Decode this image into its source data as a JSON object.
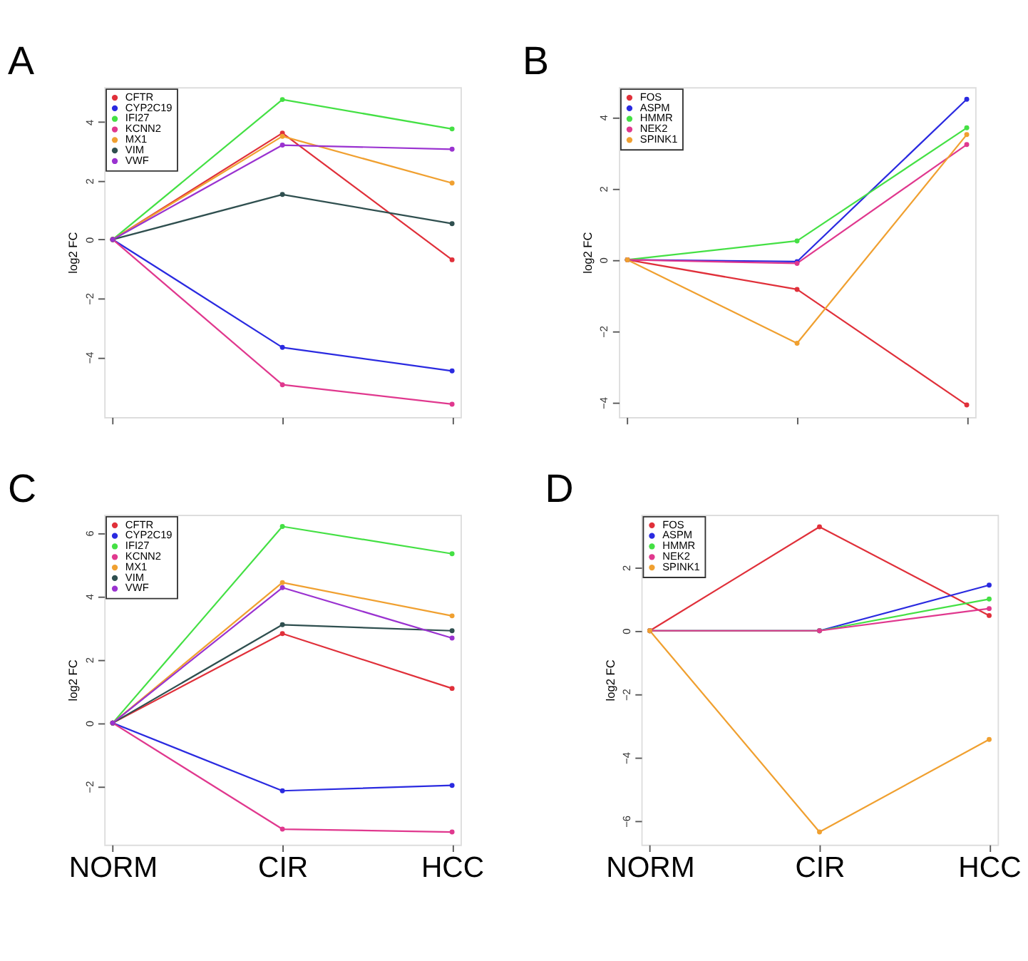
{
  "chart_data": [
    {
      "type": "line",
      "title": "A",
      "ylabel": "log2 FC",
      "categories": [
        null,
        null,
        null
      ],
      "ylim": [
        -6.04,
        5.18
      ],
      "yticks": [
        -4,
        -2,
        0,
        2,
        4
      ],
      "legend": "top left",
      "grid": false,
      "marker": "circle",
      "line_style": "solid",
      "series": [
        {
          "name": "CFTR",
          "color": "#e0303a",
          "values": [
            0,
            3.62,
            -0.69
          ]
        },
        {
          "name": "CYP2C19",
          "color": "#2a2ae0",
          "values": [
            0,
            -3.67,
            -4.47
          ]
        },
        {
          "name": "IFI27",
          "color": "#44e044",
          "values": [
            0,
            4.76,
            3.76
          ]
        },
        {
          "name": "KCNN2",
          "color": "#e0388e",
          "values": [
            0,
            -4.94,
            -5.6
          ]
        },
        {
          "name": "MX1",
          "color": "#f0a030",
          "values": [
            0,
            3.51,
            1.92
          ]
        },
        {
          "name": "VIM",
          "color": "#2f4f4f",
          "values": [
            0,
            1.53,
            0.54
          ]
        },
        {
          "name": "VWF",
          "color": "#9a32d0",
          "values": [
            0,
            3.21,
            3.07
          ]
        }
      ]
    },
    {
      "type": "line",
      "title": "B",
      "ylabel": "log2 FC",
      "categories": [
        null,
        null,
        null
      ],
      "ylim": [
        -4.41,
        4.84
      ],
      "yticks": [
        -4,
        -2,
        0,
        2,
        4
      ],
      "legend": "top left",
      "grid": false,
      "marker": "circle",
      "line_style": "solid",
      "series": [
        {
          "name": "FOS",
          "color": "#e0303a",
          "values": [
            0,
            -0.83,
            -4.07
          ]
        },
        {
          "name": "ASPM",
          "color": "#2a2ae0",
          "values": [
            0,
            -0.05,
            4.5
          ]
        },
        {
          "name": "HMMR",
          "color": "#44e044",
          "values": [
            0,
            0.53,
            3.7
          ]
        },
        {
          "name": "NEK2",
          "color": "#e0388e",
          "values": [
            0,
            -0.1,
            3.23
          ]
        },
        {
          "name": "SPINK1",
          "color": "#f0a030",
          "values": [
            0,
            -2.34,
            3.51
          ]
        }
      ]
    },
    {
      "type": "line",
      "title": "C",
      "ylabel": "log2 FC",
      "categories": [
        "NORM",
        "CIR",
        "HCC"
      ],
      "ylim": [
        -3.84,
        6.57
      ],
      "yticks": [
        -2,
        0,
        2,
        4,
        6
      ],
      "legend": "top left",
      "grid": false,
      "marker": "circle",
      "line_style": "solid",
      "series": [
        {
          "name": "CFTR",
          "color": "#e0303a",
          "values": [
            0,
            2.82,
            1.09
          ]
        },
        {
          "name": "CYP2C19",
          "color": "#2a2ae0",
          "values": [
            0,
            -2.14,
            -1.97
          ]
        },
        {
          "name": "IFI27",
          "color": "#44e044",
          "values": [
            0,
            6.2,
            5.34
          ]
        },
        {
          "name": "KCNN2",
          "color": "#e0388e",
          "values": [
            0,
            -3.35,
            -3.44
          ]
        },
        {
          "name": "MX1",
          "color": "#f0a030",
          "values": [
            0,
            4.43,
            3.38
          ]
        },
        {
          "name": "VIM",
          "color": "#2f4f4f",
          "values": [
            0,
            3.1,
            2.91
          ]
        },
        {
          "name": "VWF",
          "color": "#9a32d0",
          "values": [
            0,
            4.27,
            2.68
          ]
        }
      ]
    },
    {
      "type": "line",
      "title": "D",
      "ylabel": "log2 FC",
      "categories": [
        "NORM",
        "CIR",
        "HCC"
      ],
      "ylim": [
        -6.75,
        3.66
      ],
      "yticks": [
        -6,
        -4,
        -2,
        0,
        2
      ],
      "legend": "top left",
      "grid": false,
      "marker": "circle",
      "line_style": "solid",
      "series": [
        {
          "name": "FOS",
          "color": "#e0303a",
          "values": [
            0,
            3.28,
            0.48
          ]
        },
        {
          "name": "ASPM",
          "color": "#2a2ae0",
          "values": [
            0,
            0,
            1.44
          ]
        },
        {
          "name": "HMMR",
          "color": "#44e044",
          "values": [
            0,
            0,
            1.0
          ]
        },
        {
          "name": "NEK2",
          "color": "#e0388e",
          "values": [
            0,
            0,
            0.7
          ]
        },
        {
          "name": "SPINK1",
          "color": "#f0a030",
          "values": [
            0,
            -6.35,
            -3.43
          ]
        }
      ]
    }
  ]
}
